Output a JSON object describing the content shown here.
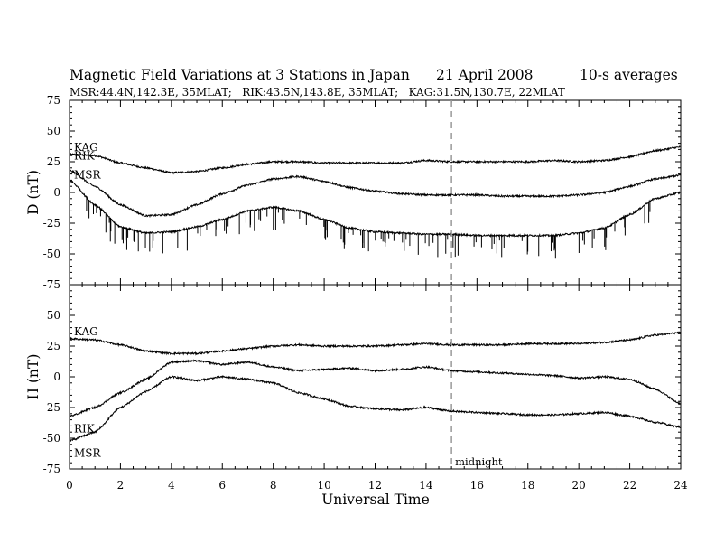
{
  "chart_data": {
    "type": "line",
    "title": "Magnetic Field Variations at 3 Stations in Japan",
    "date": "21  April      2008",
    "averaging": "10-s averages",
    "subtitle": "MSR:44.4N,142.3E, 35MLAT;   RIK:43.5N,143.8E, 35MLAT;   KAG:31.5N,130.7E, 22MLAT",
    "xlabel": "Universal Time",
    "xlim": [
      0,
      24
    ],
    "xticks": [
      "0",
      "2",
      "4",
      "6",
      "8",
      "10",
      "12",
      "14",
      "16",
      "18",
      "20",
      "22",
      "24"
    ],
    "annotation": {
      "text": "midnight",
      "x": 15
    },
    "panels": [
      {
        "ylabel": "D (nT)",
        "ylim": [
          -75,
          75
        ],
        "yticks": [
          "75",
          "50",
          "25",
          "0",
          "-25",
          "-50",
          "-75"
        ],
        "series": [
          {
            "name": "KAG",
            "x": [
              0,
              1,
              2,
              3,
              4,
              5,
              6,
              7,
              8,
              9,
              10,
              11,
              12,
              13,
              14,
              15,
              16,
              17,
              18,
              19,
              20,
              21,
              22,
              23,
              24
            ],
            "values": [
              31,
              30,
              24,
              20,
              16,
              17,
              20,
              23,
              25,
              25,
              24,
              24,
              24,
              24,
              26,
              25,
              25,
              25,
              25,
              26,
              25,
              26,
              29,
              34,
              37
            ]
          },
          {
            "name": "RIK",
            "x": [
              0,
              1,
              2,
              3,
              4,
              5,
              6,
              7,
              8,
              9,
              10,
              11,
              12,
              13,
              14,
              15,
              16,
              17,
              18,
              19,
              20,
              21,
              22,
              23,
              24
            ],
            "values": [
              18,
              5,
              -10,
              -19,
              -18,
              -10,
              -1,
              6,
              11,
              13,
              9,
              4,
              1,
              -1,
              -2,
              -2,
              -2,
              -3,
              -3,
              -3,
              -2,
              0,
              5,
              11,
              14
            ]
          },
          {
            "name": "MSR",
            "x": [
              0,
              1,
              2,
              3,
              4,
              5,
              6,
              7,
              8,
              9,
              10,
              11,
              12,
              13,
              14,
              15,
              16,
              17,
              18,
              19,
              20,
              21,
              22,
              23,
              24
            ],
            "values": [
              10,
              -10,
              -28,
              -33,
              -32,
              -28,
              -22,
              -15,
              -12,
              -15,
              -22,
              -29,
              -32,
              -33,
              -34,
              -34,
              -35,
              -35,
              -35,
              -35,
              -33,
              -29,
              -18,
              -5,
              0
            ]
          }
        ]
      },
      {
        "ylabel": "H (nT)",
        "ylim": [
          -75,
          75
        ],
        "yticks": [
          "75",
          "50",
          "25",
          "0",
          "-25",
          "-50",
          "-75"
        ],
        "series": [
          {
            "name": "KAG",
            "x": [
              0,
              1,
              2,
              3,
              4,
              5,
              6,
              7,
              8,
              9,
              10,
              11,
              12,
              13,
              14,
              15,
              16,
              17,
              18,
              19,
              20,
              21,
              22,
              23,
              24
            ],
            "values": [
              31,
              30,
              26,
              21,
              19,
              19,
              21,
              23,
              25,
              26,
              25,
              25,
              25,
              26,
              27,
              26,
              26,
              26,
              27,
              27,
              27,
              28,
              30,
              34,
              36
            ]
          },
          {
            "name": "RIK",
            "x": [
              0,
              1,
              2,
              3,
              4,
              5,
              6,
              7,
              8,
              9,
              10,
              11,
              12,
              13,
              14,
              15,
              16,
              17,
              18,
              19,
              20,
              21,
              22,
              23,
              24
            ],
            "values": [
              -32,
              -25,
              -13,
              -2,
              12,
              13,
              10,
              12,
              8,
              5,
              6,
              7,
              5,
              6,
              8,
              5,
              4,
              3,
              2,
              1,
              -1,
              0,
              -2,
              -10,
              -22
            ]
          },
          {
            "name": "MSR",
            "x": [
              0,
              1,
              2,
              3,
              4,
              5,
              6,
              7,
              8,
              9,
              10,
              11,
              12,
              13,
              14,
              15,
              16,
              17,
              18,
              19,
              20,
              21,
              22,
              23,
              24
            ],
            "values": [
              -52,
              -45,
              -25,
              -12,
              0,
              -3,
              0,
              -2,
              -5,
              -13,
              -18,
              -24,
              -26,
              -27,
              -25,
              -28,
              -29,
              -30,
              -31,
              -31,
              -30,
              -29,
              -32,
              -37,
              -41
            ]
          }
        ]
      }
    ]
  },
  "colors": {
    "line": "#000000",
    "midnight_line": "#999999",
    "background": "#ffffff"
  }
}
